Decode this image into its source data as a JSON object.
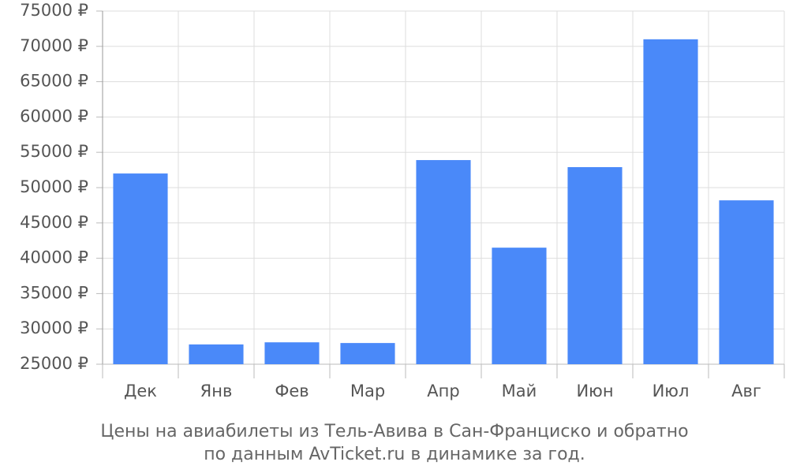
{
  "chart_data": {
    "type": "bar",
    "title": [
      "Цены на авиабилеты из Тель-Авива в Сан-Франциско и обратно",
      "по данным AvTicket.ru в динамике за год."
    ],
    "categories": [
      "Дек",
      "Янв",
      "Фев",
      "Мар",
      "Апр",
      "Май",
      "Июн",
      "Июл",
      "Авг"
    ],
    "values": [
      52000,
      27800,
      28100,
      28000,
      53900,
      41500,
      52900,
      71000,
      48200
    ],
    "color": "#4a89f9",
    "ylim": [
      25000,
      75000
    ],
    "yticks": [
      {
        "value": 25000,
        "label": "25000 ₽"
      },
      {
        "value": 30000,
        "label": "30000 ₽"
      },
      {
        "value": 35000,
        "label": "35000 ₽"
      },
      {
        "value": 40000,
        "label": "40000 ₽"
      },
      {
        "value": 45000,
        "label": "45000 ₽"
      },
      {
        "value": 50000,
        "label": "50000 ₽"
      },
      {
        "value": 55000,
        "label": "55000 ₽"
      },
      {
        "value": 60000,
        "label": "60000 ₽"
      },
      {
        "value": 65000,
        "label": "65000 ₽"
      },
      {
        "value": 70000,
        "label": "70000 ₽"
      },
      {
        "value": 75000,
        "label": "75000 ₽"
      }
    ],
    "grid": true
  }
}
